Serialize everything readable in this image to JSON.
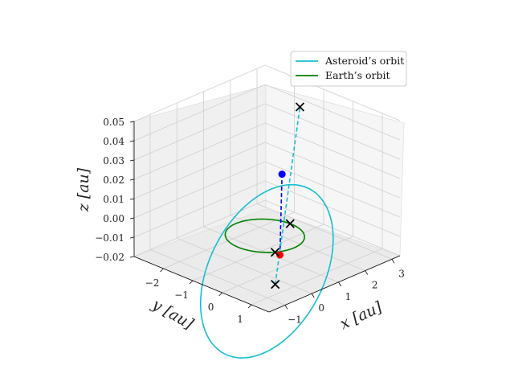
{
  "chart_data": {
    "type": "line3d",
    "title": "",
    "xlabel": "$x$ [au]",
    "ylabel": "$y$ [au]",
    "zlabel": "$z$ [au]",
    "xlabel_text": "x [au]",
    "ylabel_text": "y [au]",
    "zlabel_text": "z [au]",
    "xticks": [
      -1,
      0,
      1,
      2,
      3
    ],
    "xtick_labels": [
      "−1",
      "0",
      "1",
      "2",
      "3"
    ],
    "yticks": [
      1,
      0,
      -1,
      -2
    ],
    "ytick_labels": [
      "1",
      "0",
      "−1",
      "−2"
    ],
    "zticks": [
      -0.02,
      -0.01,
      0.0,
      0.01,
      0.02,
      0.03,
      0.04,
      0.05
    ],
    "ztick_labels": [
      "−0.02",
      "−0.01",
      "0.00",
      "0.01",
      "0.02",
      "0.03",
      "0.04",
      "0.05"
    ],
    "xlim": [
      -1.6,
      3.3
    ],
    "ylim": [
      -3.0,
      1.6
    ],
    "zlim": [
      -0.02,
      0.05
    ],
    "view": {
      "elev": 20,
      "azim": -135
    },
    "legend_position": "top-right",
    "grid": true,
    "series": [
      {
        "name": "Asteroid’s orbit",
        "type": "ellipse",
        "color": "#17becf",
        "a_au": 2.0,
        "e": 0.55,
        "inclination_deg": 1.7,
        "arg_periapsis_deg": -45,
        "node_deg": 0
      },
      {
        "name": "Earth’s orbit",
        "type": "circle",
        "color": "#008000",
        "radius_au": 1.0,
        "z": 0.0
      }
    ],
    "markers": [
      {
        "kind": "body",
        "color": "#ff0000",
        "x": -0.15,
        "y": 0.65,
        "z": -0.005
      },
      {
        "kind": "body",
        "color": "#0000ff",
        "x": 1.85,
        "y": -1.1,
        "z": 0.014
      },
      {
        "kind": "x",
        "color": "#000000",
        "x": 1.0,
        "y": -0.05,
        "z": 0.0
      },
      {
        "kind": "x",
        "color": "#000000",
        "x": -0.55,
        "y": 0.85,
        "z": 0.0
      },
      {
        "kind": "x",
        "color": "#000000",
        "x": -0.6,
        "y": 0.9,
        "z": -0.016
      },
      {
        "kind": "x",
        "color": "#000000",
        "x": 2.85,
        "y": -1.4,
        "z": 0.041
      }
    ],
    "dashed_lines": [
      {
        "color": "#0000ff",
        "from": [
          -0.15,
          0.65,
          -0.005
        ],
        "to": [
          1.85,
          -1.1,
          0.014
        ]
      },
      {
        "color": "#17becf",
        "from": [
          -0.6,
          0.9,
          -0.016
        ],
        "to": [
          2.85,
          -1.4,
          0.041
        ]
      }
    ]
  }
}
